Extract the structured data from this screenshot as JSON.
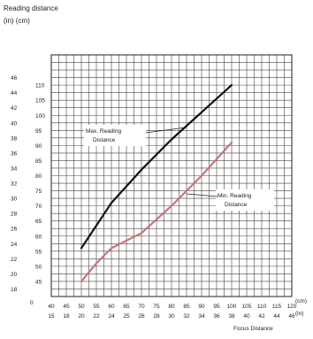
{
  "chart_data": {
    "type": "line",
    "title": "Reading distance",
    "ylabel": "(in) (cm)",
    "xlabel": "Focus Distance",
    "x_unit_cm": "(cm)",
    "x_unit_in": "(in)",
    "ylim": [
      40,
      120
    ],
    "xlim": [
      40,
      120
    ],
    "y_ticks_cm": [
      45,
      50,
      55,
      60,
      65,
      70,
      75,
      80,
      85,
      90,
      95,
      100,
      105,
      110
    ],
    "y_ticks_in": [
      "18",
      "20",
      "22",
      "24",
      "26",
      "28",
      "30",
      "32",
      "34",
      "36",
      "38",
      "40",
      "42",
      "44",
      "46"
    ],
    "x_ticks_cm": [
      "40",
      "45",
      "50",
      "55",
      "60",
      "65",
      "70",
      "75",
      "80",
      "85",
      "90",
      "95",
      "100",
      "105",
      "110",
      "115",
      "120"
    ],
    "x_ticks_in": [
      "15",
      "18",
      "20",
      "22",
      "24",
      "25",
      "26",
      "28",
      "30",
      "32",
      "34",
      "36",
      "38",
      "40",
      "42",
      "44",
      "46"
    ],
    "zero_label": "0",
    "series": [
      {
        "name": "Max. Reading Distance",
        "color": "#111111",
        "x": [
          50,
          60,
          70,
          80,
          90,
          100
        ],
        "y": [
          56,
          71,
          82,
          92,
          101,
          110
        ]
      },
      {
        "name": "Min. Reading Distance",
        "color": "#c8737a",
        "x": [
          50,
          55,
          60,
          70,
          80,
          90,
          100
        ],
        "y": [
          45,
          51,
          56,
          61,
          70,
          80,
          91
        ]
      }
    ]
  }
}
